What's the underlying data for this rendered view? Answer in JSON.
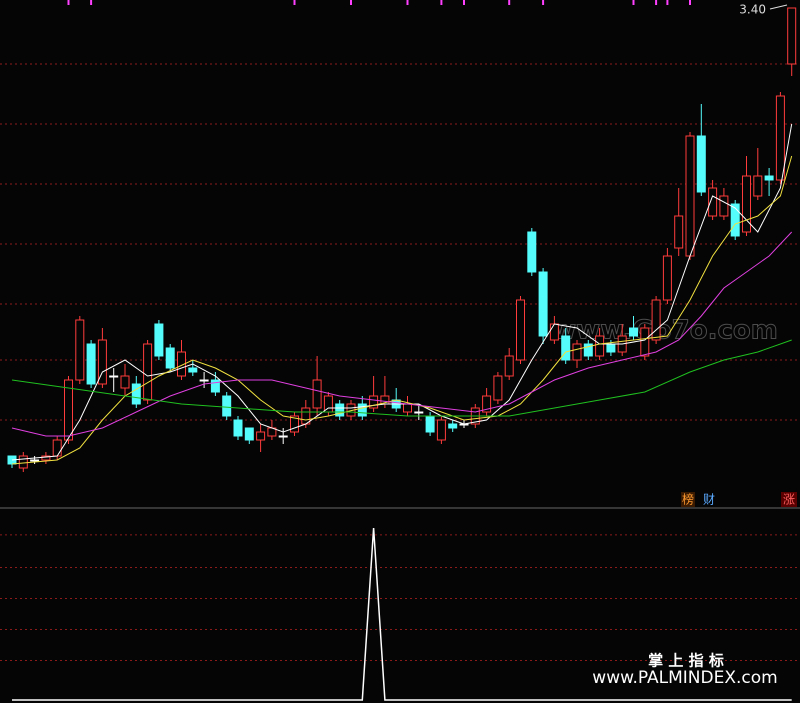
{
  "chart_data": {
    "type": "candlestick",
    "ylim": [
      2.15,
      3.42
    ],
    "grid_lines": [
      3.26,
      3.11,
      2.96,
      2.81,
      2.66,
      2.52,
      2.37
    ],
    "up_color": "#ff3c3c",
    "down_color": "#54fcfc",
    "flat_color": "#ffffff",
    "candles": [
      [
        2.28,
        2.26,
        2.28,
        2.25
      ],
      [
        2.25,
        2.28,
        2.29,
        2.24
      ],
      [
        2.27,
        2.27,
        2.28,
        2.26
      ],
      [
        2.27,
        2.28,
        2.29,
        2.26
      ],
      [
        2.28,
        2.32,
        2.33,
        2.27
      ],
      [
        2.32,
        2.47,
        2.48,
        2.31
      ],
      [
        2.47,
        2.62,
        2.63,
        2.46
      ],
      [
        2.56,
        2.46,
        2.57,
        2.45
      ],
      [
        2.46,
        2.57,
        2.6,
        2.45
      ],
      [
        2.48,
        2.48,
        2.5,
        2.44
      ],
      [
        2.45,
        2.48,
        2.51,
        2.43
      ],
      [
        2.46,
        2.41,
        2.48,
        2.4
      ],
      [
        2.42,
        2.56,
        2.57,
        2.41
      ],
      [
        2.61,
        2.53,
        2.62,
        2.52
      ],
      [
        2.55,
        2.5,
        2.56,
        2.49
      ],
      [
        2.48,
        2.54,
        2.57,
        2.47
      ],
      [
        2.5,
        2.49,
        2.52,
        2.48
      ],
      [
        2.47,
        2.47,
        2.49,
        2.45
      ],
      [
        2.47,
        2.44,
        2.49,
        2.43
      ],
      [
        2.43,
        2.38,
        2.44,
        2.37
      ],
      [
        2.37,
        2.33,
        2.38,
        2.32
      ],
      [
        2.35,
        2.32,
        2.35,
        2.31
      ],
      [
        2.32,
        2.34,
        2.36,
        2.29
      ],
      [
        2.33,
        2.35,
        2.37,
        2.32
      ],
      [
        2.33,
        2.33,
        2.35,
        2.31
      ],
      [
        2.34,
        2.38,
        2.39,
        2.33
      ],
      [
        2.36,
        2.4,
        2.42,
        2.35
      ],
      [
        2.4,
        2.47,
        2.53,
        2.38
      ],
      [
        2.39,
        2.43,
        2.44,
        2.38
      ],
      [
        2.41,
        2.38,
        2.42,
        2.37
      ],
      [
        2.38,
        2.41,
        2.42,
        2.37
      ],
      [
        2.41,
        2.38,
        2.43,
        2.37
      ],
      [
        2.4,
        2.43,
        2.48,
        2.39
      ],
      [
        2.41,
        2.43,
        2.48,
        2.4
      ],
      [
        2.42,
        2.4,
        2.45,
        2.39
      ],
      [
        2.39,
        2.41,
        2.43,
        2.38
      ],
      [
        2.39,
        2.39,
        2.41,
        2.37
      ],
      [
        2.38,
        2.34,
        2.39,
        2.33
      ],
      [
        2.32,
        2.37,
        2.38,
        2.31
      ],
      [
        2.36,
        2.35,
        2.37,
        2.34
      ],
      [
        2.36,
        2.36,
        2.37,
        2.35
      ],
      [
        2.36,
        2.4,
        2.41,
        2.35
      ],
      [
        2.39,
        2.43,
        2.45,
        2.38
      ],
      [
        2.42,
        2.48,
        2.49,
        2.41
      ],
      [
        2.48,
        2.53,
        2.55,
        2.47
      ],
      [
        2.52,
        2.67,
        2.68,
        2.51
      ],
      [
        2.84,
        2.74,
        2.85,
        2.73
      ],
      [
        2.74,
        2.58,
        2.75,
        2.56
      ],
      [
        2.57,
        2.61,
        2.63,
        2.56
      ],
      [
        2.58,
        2.52,
        2.6,
        2.51
      ],
      [
        2.52,
        2.56,
        2.57,
        2.5
      ],
      [
        2.56,
        2.53,
        2.57,
        2.52
      ],
      [
        2.53,
        2.58,
        2.6,
        2.52
      ],
      [
        2.56,
        2.54,
        2.57,
        2.53
      ],
      [
        2.54,
        2.58,
        2.61,
        2.53
      ],
      [
        2.6,
        2.58,
        2.63,
        2.57
      ],
      [
        2.53,
        2.6,
        2.61,
        2.52
      ],
      [
        2.57,
        2.67,
        2.68,
        2.56
      ],
      [
        2.67,
        2.78,
        2.8,
        2.66
      ],
      [
        2.8,
        2.88,
        2.95,
        2.78
      ],
      [
        2.78,
        3.08,
        3.09,
        2.77
      ],
      [
        3.08,
        2.94,
        3.16,
        2.93
      ],
      [
        2.88,
        2.95,
        2.97,
        2.87
      ],
      [
        2.88,
        2.93,
        2.95,
        2.87
      ],
      [
        2.91,
        2.83,
        2.92,
        2.82
      ],
      [
        2.84,
        2.98,
        3.03,
        2.83
      ],
      [
        2.93,
        2.98,
        3.05,
        2.92
      ],
      [
        2.98,
        2.97,
        3.0,
        2.93
      ],
      [
        2.97,
        3.18,
        3.19,
        2.96
      ],
      [
        3.26,
        3.4,
        3.4,
        3.23
      ]
    ],
    "series": [
      {
        "color": "#ffffff",
        "x": [
          0,
          4,
          6,
          8,
          10,
          12,
          14,
          16,
          18,
          20,
          22,
          24,
          26,
          28,
          30,
          33,
          36,
          38,
          40,
          42,
          44,
          46,
          48,
          50,
          52,
          54,
          56,
          58,
          60,
          62,
          64,
          66,
          68,
          69
        ],
        "values": [
          2.27,
          2.28,
          2.37,
          2.49,
          2.52,
          2.48,
          2.49,
          2.51,
          2.48,
          2.43,
          2.36,
          2.34,
          2.36,
          2.4,
          2.4,
          2.41,
          2.41,
          2.38,
          2.36,
          2.37,
          2.42,
          2.52,
          2.61,
          2.6,
          2.56,
          2.56,
          2.57,
          2.62,
          2.78,
          2.93,
          2.9,
          2.84,
          2.95,
          3.11
        ]
      },
      {
        "color": "#f0e040",
        "x": [
          0,
          4,
          6,
          8,
          10,
          13,
          16,
          18,
          20,
          22,
          24,
          26,
          28,
          31,
          34,
          37,
          40,
          43,
          45,
          47,
          49,
          52,
          55,
          58,
          60,
          62,
          64,
          66,
          68,
          69
        ],
        "values": [
          2.26,
          2.27,
          2.3,
          2.37,
          2.43,
          2.48,
          2.52,
          2.5,
          2.47,
          2.42,
          2.38,
          2.37,
          2.38,
          2.4,
          2.42,
          2.4,
          2.37,
          2.38,
          2.41,
          2.47,
          2.54,
          2.56,
          2.57,
          2.58,
          2.67,
          2.78,
          2.86,
          2.88,
          2.93,
          3.03
        ]
      },
      {
        "color": "#e040e0",
        "x": [
          0,
          3,
          5,
          8,
          11,
          14,
          17,
          20,
          23,
          26,
          29,
          32,
          35,
          38,
          41,
          44,
          46,
          48,
          51,
          54,
          57,
          59,
          61,
          63,
          65,
          67,
          69
        ],
        "values": [
          2.35,
          2.33,
          2.33,
          2.35,
          2.39,
          2.43,
          2.46,
          2.47,
          2.47,
          2.45,
          2.43,
          2.42,
          2.41,
          2.4,
          2.39,
          2.41,
          2.44,
          2.47,
          2.5,
          2.52,
          2.54,
          2.57,
          2.63,
          2.7,
          2.74,
          2.78,
          2.84
        ]
      },
      {
        "color": "#20c020",
        "x": [
          0,
          5,
          10,
          15,
          20,
          25,
          30,
          35,
          40,
          44,
          48,
          52,
          56,
          60,
          63,
          66,
          69
        ],
        "values": [
          2.47,
          2.45,
          2.43,
          2.41,
          2.4,
          2.39,
          2.39,
          2.38,
          2.38,
          2.38,
          2.4,
          2.42,
          2.44,
          2.49,
          2.52,
          2.54,
          2.57
        ]
      }
    ],
    "signal_candles": [
      5,
      7,
      25,
      30,
      35,
      38,
      40,
      44,
      47,
      55,
      57,
      58,
      60
    ],
    "signal_color": "#ff40ff",
    "annotation": {
      "value": 3.4,
      "label": "3.40"
    },
    "badges": [
      "榜",
      "财",
      "涨"
    ],
    "lower": {
      "ylim": [
        0,
        1
      ],
      "grid_lines": [
        0.96,
        0.77,
        0.59,
        0.41,
        0.23
      ],
      "color": "#ffffff",
      "values": [
        0,
        0,
        0,
        0,
        0,
        0,
        0,
        0,
        0,
        0,
        0,
        0,
        0,
        0,
        0,
        0,
        0,
        0,
        0,
        0,
        0,
        0,
        0,
        0,
        0,
        0,
        0,
        0,
        0,
        0,
        0,
        0,
        1,
        0,
        0,
        0,
        0,
        0,
        0,
        0,
        0,
        0,
        0,
        0,
        0,
        0,
        0,
        0,
        0,
        0,
        0,
        0,
        0,
        0,
        0,
        0,
        0,
        0,
        0,
        0,
        0,
        0,
        0,
        0,
        0,
        0,
        0,
        0,
        0,
        0
      ]
    }
  },
  "watermarks": [
    "www.Go7o.com",
    "掌 上 指 标",
    "www.PALMINDEX.com"
  ]
}
